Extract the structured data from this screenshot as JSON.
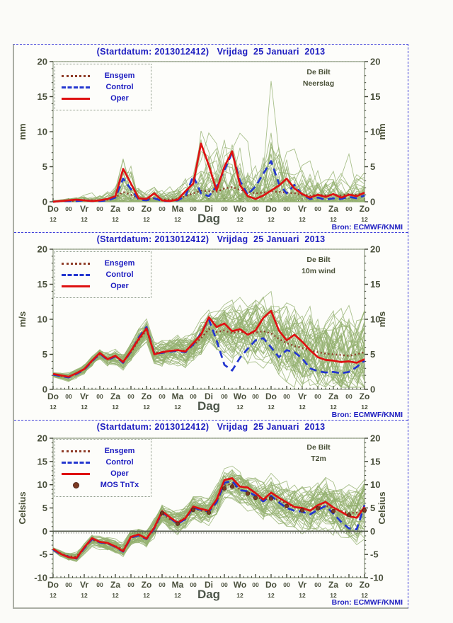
{
  "title": "(Startdatum: 2013012412)   Vrijdag  25 Januari  2013",
  "source": "Bron: ECMWF/KNMI",
  "x_axis": {
    "title": "Dag",
    "day_labels": [
      "Do",
      "Vr",
      "Za",
      "Zo",
      "Ma",
      "Di",
      "Wo",
      "Do",
      "Vr",
      "Za",
      "Zo"
    ],
    "midnight_label": "00",
    "noon_label": "12"
  },
  "colors": {
    "title_blue": "#1c1cc0",
    "axis_label": "#494f3b",
    "frame": "#8a967e",
    "ensemble_green": "#93b06f",
    "oper_red": "#de1111",
    "control_blue": "#2336cf",
    "ensgem_brown": "#8f3d28",
    "mos_brown": "#7c3a22",
    "border_blue": "#3b3bd8"
  },
  "chart_data": [
    {
      "type": "line",
      "title": "(Startdatum: 2013012412)   Vrijdag  25 Januari  2013",
      "station": "De Bilt",
      "variable": "Neerslag",
      "ylabel": "mm",
      "xlabel": "Dag",
      "source": "Bron: ECMWF/KNMI",
      "ylim": [
        0,
        20
      ],
      "yticks": [
        0,
        5,
        10,
        15,
        20
      ],
      "x_hours_step": 6,
      "series": [
        {
          "name": "Ensgem",
          "style": "dotted",
          "color": "#8f3d28",
          "values": [
            0,
            0.1,
            0.1,
            0.1,
            0.2,
            0.2,
            0.2,
            0.3,
            0.6,
            1.4,
            1.0,
            0.5,
            0.4,
            0.5,
            0.3,
            0.3,
            0.4,
            0.8,
            1.2,
            1.6,
            1.5,
            1.4,
            1.9,
            2.1,
            1.7,
            1.4,
            1.2,
            1.3,
            1.5,
            1.4,
            1.3,
            1.2,
            1.0,
            0.9,
            1.0,
            0.9,
            1.0,
            0.9,
            1.1,
            1.0,
            1.2
          ]
        },
        {
          "name": "Control",
          "style": "dashed",
          "color": "#2336cf",
          "values": [
            0,
            0.1,
            0.1,
            0.1,
            0.2,
            0.1,
            0.1,
            0.2,
            0.6,
            3.3,
            1.8,
            0.3,
            0.2,
            0.5,
            0.1,
            0.1,
            0.2,
            0.8,
            3.7,
            1.2,
            0.8,
            2.2,
            4.5,
            7.0,
            3.0,
            1.0,
            2.2,
            4.0,
            5.8,
            2.6,
            1.2,
            2.4,
            1.0,
            0.4,
            0.6,
            0.3,
            0.5,
            0.4,
            0.7,
            0.5,
            0.9
          ]
        },
        {
          "name": "Oper",
          "style": "solid",
          "color": "#de1111",
          "values": [
            0,
            0.1,
            0.2,
            0.3,
            0.2,
            0.1,
            0.2,
            0.4,
            0.8,
            4.7,
            2.6,
            0.5,
            0.4,
            1.2,
            0.2,
            0.1,
            0.3,
            1.5,
            2.6,
            8.3,
            5.2,
            1.6,
            5.0,
            7.2,
            2.4,
            0.8,
            0.4,
            0.9,
            1.6,
            2.3,
            3.3,
            1.9,
            1.1,
            0.6,
            1.0,
            0.7,
            1.1,
            0.6,
            1.0,
            0.8,
            1.3
          ]
        }
      ],
      "ensemble": {
        "members": 50,
        "color": "#93b06f",
        "mode": "spiky",
        "envelope_max": [
          0.3,
          0.4,
          0.5,
          0.7,
          0.9,
          1.0,
          1.2,
          2.0,
          3.5,
          7.0,
          6.0,
          3.0,
          2.2,
          2.0,
          1.6,
          1.5,
          2.2,
          3.5,
          5.5,
          8.0,
          8.5,
          8.0,
          10.0,
          10.5,
          9.0,
          8.0,
          7.5,
          9.0,
          12.0,
          9.0,
          7.5,
          6.5,
          5.5,
          5.0,
          5.5,
          4.5,
          4.5,
          4.0,
          4.0,
          4.5,
          4.5
        ]
      }
    },
    {
      "type": "line",
      "title": "(Startdatum: 2013012412)   Vrijdag  25 Januari  2013",
      "station": "De Bilt",
      "variable": "10m wind",
      "ylabel": "m/s",
      "xlabel": "Dag",
      "source": "Bron: ECMWF/KNMI",
      "ylim": [
        0,
        20
      ],
      "yticks": [
        0,
        5,
        10,
        15,
        20
      ],
      "x_hours_step": 6,
      "series": [
        {
          "name": "Ensgem",
          "style": "dotted",
          "color": "#8f3d28",
          "values": [
            2.1,
            1.9,
            1.8,
            2.3,
            2.9,
            4.0,
            5.0,
            4.4,
            4.7,
            4.0,
            5.3,
            7.0,
            8.4,
            5.2,
            5.3,
            5.5,
            5.6,
            5.5,
            6.3,
            7.3,
            8.6,
            8.2,
            8.4,
            8.0,
            8.3,
            7.9,
            8.1,
            8.3,
            8.0,
            7.2,
            6.6,
            6.2,
            5.9,
            5.6,
            5.3,
            5.1,
            5.0,
            4.9,
            4.8,
            5.0,
            5.3
          ]
        },
        {
          "name": "Control",
          "style": "dashed",
          "color": "#2336cf",
          "values": [
            2.1,
            1.9,
            1.7,
            2.2,
            2.8,
            4.0,
            5.1,
            4.2,
            4.7,
            3.8,
            5.4,
            7.4,
            8.9,
            5.1,
            5.2,
            5.4,
            5.5,
            5.3,
            6.4,
            8.0,
            10.0,
            7.0,
            3.5,
            2.7,
            4.5,
            5.8,
            7.0,
            7.3,
            6.0,
            4.6,
            5.6,
            5.3,
            4.4,
            3.0,
            2.6,
            2.4,
            2.5,
            2.3,
            2.5,
            3.2,
            4.1
          ]
        },
        {
          "name": "Oper",
          "style": "solid",
          "color": "#de1111",
          "values": [
            2.2,
            2.0,
            1.8,
            2.3,
            2.9,
            4.1,
            5.2,
            4.3,
            4.8,
            3.9,
            5.5,
            7.2,
            8.7,
            5.0,
            5.3,
            5.5,
            5.6,
            5.4,
            6.6,
            7.8,
            10.3,
            8.9,
            9.4,
            8.3,
            8.6,
            7.8,
            8.4,
            10.2,
            11.2,
            8.4,
            7.0,
            7.8,
            6.8,
            5.6,
            4.6,
            4.2,
            4.1,
            3.9,
            4.0,
            3.8,
            4.3
          ]
        }
      ],
      "ensemble": {
        "members": 50,
        "color": "#93b06f",
        "mode": "band",
        "clamp_min": 0.3,
        "spread": [
          0.3,
          0.3,
          0.4,
          0.4,
          0.5,
          0.5,
          0.6,
          0.7,
          0.8,
          0.8,
          0.9,
          1.0,
          1.0,
          1.0,
          1.2,
          1.3,
          1.4,
          1.5,
          1.7,
          1.9,
          2.0,
          2.2,
          2.5,
          2.7,
          2.8,
          3.0,
          3.2,
          3.4,
          3.5,
          3.6,
          3.8,
          4.0,
          4.0,
          4.2,
          4.2,
          4.3,
          4.3,
          4.4,
          4.4,
          4.5,
          4.5
        ]
      }
    },
    {
      "type": "line",
      "title": "(Startdatum: 2013012412)   Vrijdag  25 Januari  2013",
      "station": "De Bilt",
      "variable": "T2m",
      "ylabel": "Celsius",
      "xlabel": "Dag",
      "source": "Bron: ECMWF/KNMI",
      "ylim": [
        -10,
        20
      ],
      "yticks": [
        -10,
        -5,
        0,
        5,
        10,
        15,
        20
      ],
      "zero_line": true,
      "x_hours_step": 6,
      "series": [
        {
          "name": "Ensgem",
          "style": "dotted",
          "color": "#8f3d28",
          "values": [
            -3.9,
            -4.8,
            -5.4,
            -5.5,
            -3.6,
            -1.8,
            -2.4,
            -2.7,
            -3.2,
            -3.9,
            -1.4,
            -0.9,
            -1.5,
            0.6,
            3.8,
            2.6,
            2.0,
            2.9,
            4.9,
            4.4,
            4.3,
            6.4,
            9.8,
            10.2,
            9.0,
            8.4,
            7.6,
            6.6,
            7.4,
            6.6,
            5.9,
            5.2,
            4.9,
            4.5,
            5.1,
            5.5,
            4.8,
            4.3,
            3.9,
            4.0,
            4.9
          ]
        },
        {
          "name": "Control",
          "style": "dashed",
          "color": "#2336cf",
          "values": [
            -4.0,
            -5.0,
            -5.5,
            -5.9,
            -3.7,
            -1.7,
            -2.4,
            -2.6,
            -3.4,
            -4.4,
            -1.4,
            -0.9,
            -1.7,
            0.6,
            4.1,
            2.8,
            1.6,
            2.6,
            5.1,
            4.6,
            4.2,
            6.2,
            10.4,
            10.8,
            8.8,
            8.6,
            7.6,
            6.4,
            7.6,
            6.2,
            5.0,
            4.4,
            4.2,
            3.6,
            4.6,
            5.4,
            3.8,
            2.0,
            0.6,
            0.4,
            5.6
          ]
        },
        {
          "name": "Oper",
          "style": "solid",
          "color": "#de1111",
          "values": [
            -3.8,
            -4.9,
            -5.6,
            -5.8,
            -3.5,
            -1.5,
            -2.3,
            -2.5,
            -3.3,
            -4.3,
            -1.2,
            -0.7,
            -1.6,
            0.8,
            4.3,
            3.0,
            1.8,
            2.8,
            5.3,
            4.8,
            4.4,
            6.8,
            11.0,
            11.4,
            9.6,
            9.4,
            8.2,
            6.8,
            8.3,
            7.2,
            6.2,
            5.2,
            5.0,
            4.4,
            5.6,
            6.3,
            5.1,
            4.2,
            3.2,
            2.9,
            5.2
          ]
        }
      ],
      "mos": {
        "name": "MOS TnTx",
        "color": "#7c3a22",
        "points": [
          [
            14,
            3.9
          ],
          [
            16,
            1.6
          ],
          [
            18,
            4.6
          ],
          [
            20,
            4.0
          ],
          [
            22,
            9.2
          ],
          [
            23,
            9.6
          ],
          [
            25,
            8.1
          ],
          [
            26,
            7.2
          ],
          [
            28,
            7.0
          ],
          [
            30,
            5.4
          ],
          [
            32,
            4.5
          ],
          [
            34,
            4.9
          ],
          [
            36,
            4.3
          ],
          [
            38,
            3.5
          ],
          [
            40,
            4.5
          ]
        ]
      },
      "ensemble": {
        "members": 50,
        "color": "#93b06f",
        "mode": "band",
        "spread": [
          0.4,
          0.5,
          0.6,
          0.7,
          0.8,
          0.8,
          0.9,
          1.0,
          1.0,
          1.1,
          1.2,
          1.2,
          1.3,
          1.4,
          1.5,
          1.6,
          1.7,
          1.8,
          1.9,
          2.0,
          2.0,
          2.1,
          2.2,
          2.3,
          2.4,
          2.5,
          2.7,
          2.8,
          3.0,
          3.1,
          3.2,
          3.3,
          3.4,
          3.5,
          3.6,
          3.7,
          3.8,
          3.9,
          4.0,
          4.2,
          4.3
        ]
      }
    }
  ]
}
